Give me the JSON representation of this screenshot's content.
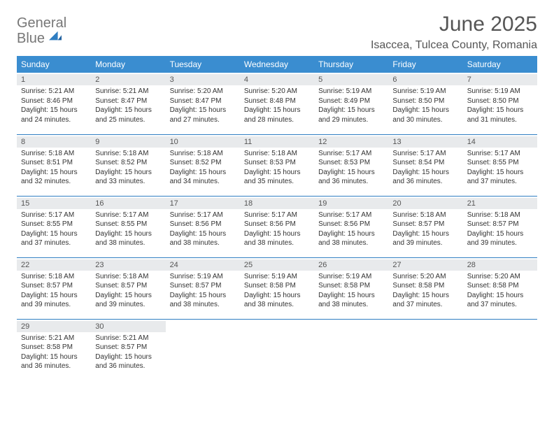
{
  "logo": {
    "line1": "General",
    "line2": "Blue"
  },
  "title": "June 2025",
  "location": "Isaccea, Tulcea County, Romania",
  "header_bg": "#3a8dd0",
  "rule_color": "#2f7ec2",
  "daybar_bg": "#e8eaec",
  "weekdays": [
    "Sunday",
    "Monday",
    "Tuesday",
    "Wednesday",
    "Thursday",
    "Friday",
    "Saturday"
  ],
  "weeks": [
    [
      {
        "n": "1",
        "sr": "5:21 AM",
        "ss": "8:46 PM",
        "dl": "15 hours and 24 minutes."
      },
      {
        "n": "2",
        "sr": "5:21 AM",
        "ss": "8:47 PM",
        "dl": "15 hours and 25 minutes."
      },
      {
        "n": "3",
        "sr": "5:20 AM",
        "ss": "8:47 PM",
        "dl": "15 hours and 27 minutes."
      },
      {
        "n": "4",
        "sr": "5:20 AM",
        "ss": "8:48 PM",
        "dl": "15 hours and 28 minutes."
      },
      {
        "n": "5",
        "sr": "5:19 AM",
        "ss": "8:49 PM",
        "dl": "15 hours and 29 minutes."
      },
      {
        "n": "6",
        "sr": "5:19 AM",
        "ss": "8:50 PM",
        "dl": "15 hours and 30 minutes."
      },
      {
        "n": "7",
        "sr": "5:19 AM",
        "ss": "8:50 PM",
        "dl": "15 hours and 31 minutes."
      }
    ],
    [
      {
        "n": "8",
        "sr": "5:18 AM",
        "ss": "8:51 PM",
        "dl": "15 hours and 32 minutes."
      },
      {
        "n": "9",
        "sr": "5:18 AM",
        "ss": "8:52 PM",
        "dl": "15 hours and 33 minutes."
      },
      {
        "n": "10",
        "sr": "5:18 AM",
        "ss": "8:52 PM",
        "dl": "15 hours and 34 minutes."
      },
      {
        "n": "11",
        "sr": "5:18 AM",
        "ss": "8:53 PM",
        "dl": "15 hours and 35 minutes."
      },
      {
        "n": "12",
        "sr": "5:17 AM",
        "ss": "8:53 PM",
        "dl": "15 hours and 36 minutes."
      },
      {
        "n": "13",
        "sr": "5:17 AM",
        "ss": "8:54 PM",
        "dl": "15 hours and 36 minutes."
      },
      {
        "n": "14",
        "sr": "5:17 AM",
        "ss": "8:55 PM",
        "dl": "15 hours and 37 minutes."
      }
    ],
    [
      {
        "n": "15",
        "sr": "5:17 AM",
        "ss": "8:55 PM",
        "dl": "15 hours and 37 minutes."
      },
      {
        "n": "16",
        "sr": "5:17 AM",
        "ss": "8:55 PM",
        "dl": "15 hours and 38 minutes."
      },
      {
        "n": "17",
        "sr": "5:17 AM",
        "ss": "8:56 PM",
        "dl": "15 hours and 38 minutes."
      },
      {
        "n": "18",
        "sr": "5:17 AM",
        "ss": "8:56 PM",
        "dl": "15 hours and 38 minutes."
      },
      {
        "n": "19",
        "sr": "5:17 AM",
        "ss": "8:56 PM",
        "dl": "15 hours and 38 minutes."
      },
      {
        "n": "20",
        "sr": "5:18 AM",
        "ss": "8:57 PM",
        "dl": "15 hours and 39 minutes."
      },
      {
        "n": "21",
        "sr": "5:18 AM",
        "ss": "8:57 PM",
        "dl": "15 hours and 39 minutes."
      }
    ],
    [
      {
        "n": "22",
        "sr": "5:18 AM",
        "ss": "8:57 PM",
        "dl": "15 hours and 39 minutes."
      },
      {
        "n": "23",
        "sr": "5:18 AM",
        "ss": "8:57 PM",
        "dl": "15 hours and 39 minutes."
      },
      {
        "n": "24",
        "sr": "5:19 AM",
        "ss": "8:57 PM",
        "dl": "15 hours and 38 minutes."
      },
      {
        "n": "25",
        "sr": "5:19 AM",
        "ss": "8:58 PM",
        "dl": "15 hours and 38 minutes."
      },
      {
        "n": "26",
        "sr": "5:19 AM",
        "ss": "8:58 PM",
        "dl": "15 hours and 38 minutes."
      },
      {
        "n": "27",
        "sr": "5:20 AM",
        "ss": "8:58 PM",
        "dl": "15 hours and 37 minutes."
      },
      {
        "n": "28",
        "sr": "5:20 AM",
        "ss": "8:58 PM",
        "dl": "15 hours and 37 minutes."
      }
    ],
    [
      {
        "n": "29",
        "sr": "5:21 AM",
        "ss": "8:58 PM",
        "dl": "15 hours and 36 minutes."
      },
      {
        "n": "30",
        "sr": "5:21 AM",
        "ss": "8:57 PM",
        "dl": "15 hours and 36 minutes."
      },
      null,
      null,
      null,
      null,
      null
    ]
  ],
  "labels": {
    "sunrise": "Sunrise:",
    "sunset": "Sunset:",
    "daylight": "Daylight:"
  }
}
